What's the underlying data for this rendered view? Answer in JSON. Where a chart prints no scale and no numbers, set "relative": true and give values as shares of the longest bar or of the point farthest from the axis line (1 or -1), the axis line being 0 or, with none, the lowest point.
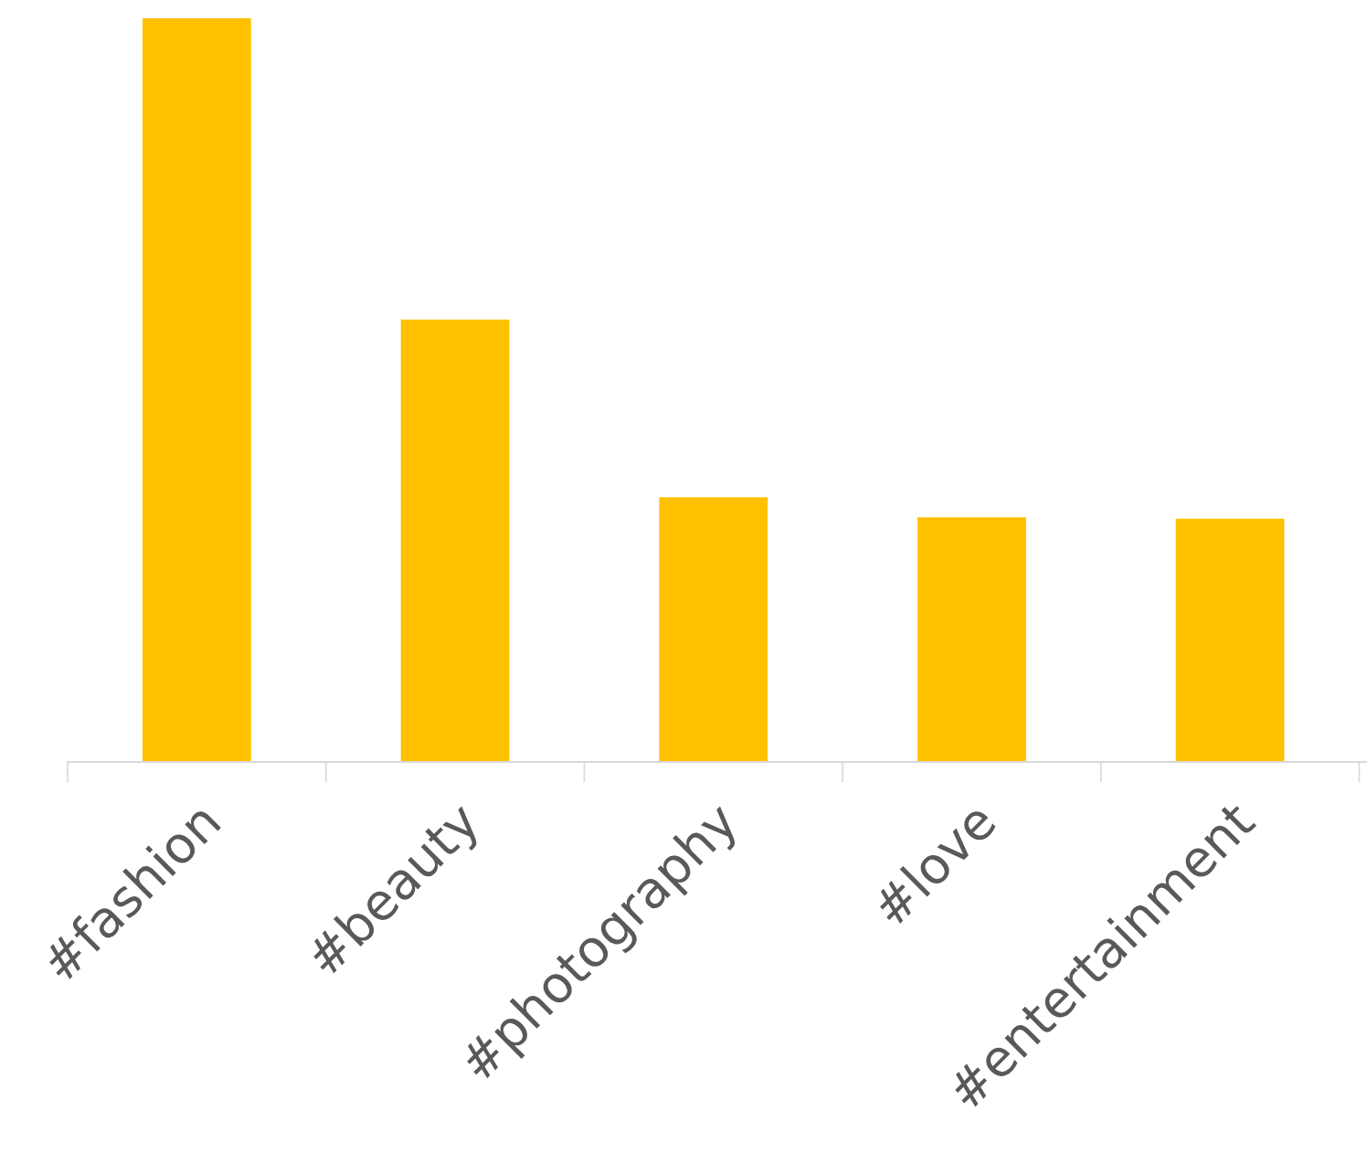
{
  "chart_data": {
    "type": "bar",
    "relative": true,
    "categories": [
      "#fashion",
      "#beauty",
      "#photography",
      "#love",
      "#entertainment"
    ],
    "values": [
      1,
      0.595,
      0.356,
      0.329,
      0.327
    ],
    "color": "#ffc000",
    "grid": false,
    "legend": false
  }
}
